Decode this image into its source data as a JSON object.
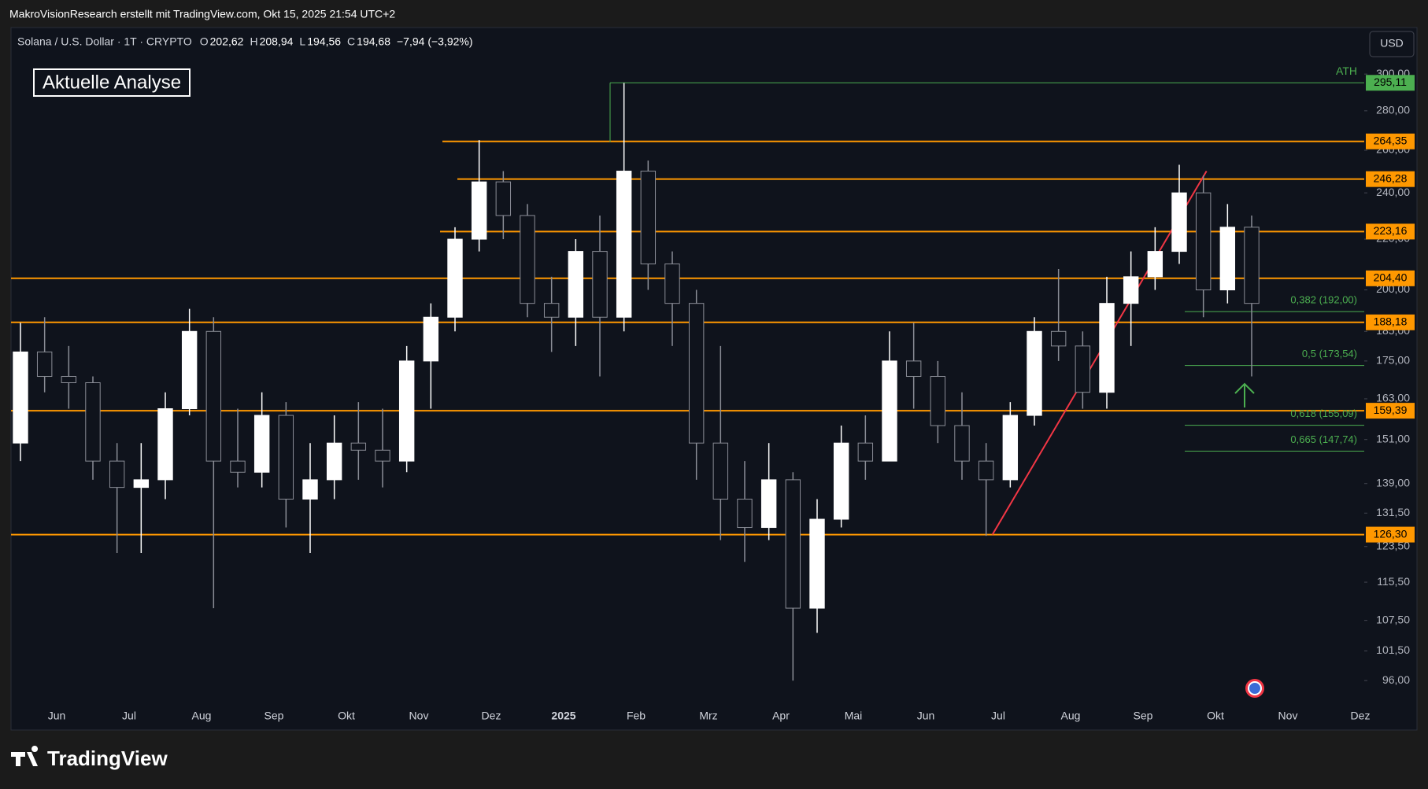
{
  "header": {
    "credit": "MakroVisionResearch erstellt mit TradingView.com, Okt 15, 2025 21:54 UTC+2",
    "brand": "TradingView"
  },
  "chart_data": {
    "type": "candlestick",
    "symbol": "Solana / U.S. Dollar · 1T · CRYPTO",
    "ohlc": [
      {
        "key": "O",
        "text": "202,62"
      },
      {
        "key": "H",
        "text": "208,94"
      },
      {
        "key": "L",
        "text": "194,56"
      },
      {
        "key": "C",
        "text": "194,68"
      }
    ],
    "change": "−7,94 (−3,92%)",
    "currency": "USD",
    "annotation": "Aktuelle Analyse",
    "ath_label": "ATH",
    "log_scale": true,
    "up_color": "#ffffff",
    "down_color": "#8a8d96",
    "categories": [
      "Jun",
      "Jul",
      "Aug",
      "Sep",
      "Okt",
      "Nov",
      "Dez",
      "2025",
      "Feb",
      "Mrz",
      "Apr",
      "Mai",
      "Jun",
      "Jul",
      "Aug",
      "Sep",
      "Okt",
      "Nov",
      "Dez"
    ],
    "candles": {
      "open": [
        150,
        178,
        170,
        168,
        145,
        138,
        140,
        160,
        185,
        145,
        142,
        158,
        135,
        140,
        150,
        148,
        145,
        175,
        190,
        220,
        245,
        230,
        195,
        190,
        215,
        190,
        250,
        210,
        195,
        150,
        135,
        128,
        140,
        110,
        130,
        150,
        145,
        175,
        170,
        155,
        145,
        140,
        158,
        185,
        180,
        165,
        195,
        205,
        215,
        240,
        200,
        225
      ],
      "high": [
        188,
        190,
        180,
        170,
        150,
        150,
        165,
        193,
        190,
        160,
        165,
        162,
        150,
        158,
        162,
        160,
        180,
        195,
        225,
        265,
        250,
        235,
        205,
        220,
        230,
        295,
        255,
        215,
        200,
        180,
        145,
        150,
        142,
        135,
        155,
        158,
        185,
        188,
        175,
        165,
        150,
        162,
        190,
        208,
        185,
        205,
        215,
        225,
        253,
        248,
        235,
        230
      ],
      "low": [
        145,
        165,
        160,
        140,
        122,
        122,
        135,
        158,
        110,
        138,
        138,
        128,
        122,
        135,
        140,
        138,
        142,
        160,
        185,
        215,
        220,
        190,
        178,
        180,
        170,
        185,
        200,
        180,
        140,
        125,
        120,
        125,
        96,
        105,
        128,
        140,
        145,
        160,
        150,
        140,
        126,
        138,
        155,
        175,
        160,
        160,
        180,
        200,
        210,
        190,
        195,
        170
      ],
      "close": [
        178,
        170,
        168,
        145,
        138,
        140,
        160,
        185,
        145,
        142,
        158,
        135,
        140,
        150,
        148,
        145,
        175,
        190,
        220,
        245,
        230,
        195,
        190,
        215,
        190,
        250,
        210,
        195,
        150,
        135,
        128,
        140,
        110,
        130,
        150,
        145,
        175,
        170,
        155,
        145,
        140,
        158,
        185,
        180,
        165,
        195,
        205,
        215,
        240,
        200,
        225,
        195
      ]
    },
    "levels": {
      "color": "#ff9800",
      "items": [
        {
          "value": 264.35,
          "label": "264,35"
        },
        {
          "value": 246.28,
          "label": "246,28"
        },
        {
          "value": 223.16,
          "label": "223,16"
        },
        {
          "value": 204.4,
          "label": "204,40"
        },
        {
          "value": 188.18,
          "label": "188,18"
        },
        {
          "value": 159.39,
          "label": "159,39"
        },
        {
          "value": 126.3,
          "label": "126,30"
        }
      ]
    },
    "ath": {
      "value": 295.11,
      "label": "295,11",
      "color": "#4caf50"
    },
    "fib": {
      "color": "#4caf50",
      "items": [
        {
          "value": 192,
          "label": "0,382 (192,00)"
        },
        {
          "value": 173.54,
          "label": "0,5 (173,54)"
        },
        {
          "value": 155.09,
          "label": "0,618 (155,09)"
        },
        {
          "value": 147.74,
          "label": "0,665 (147,74)"
        }
      ]
    },
    "trendline": {
      "color": "#f23645",
      "values": [
        126.3,
        250
      ]
    },
    "ylim": [
      92,
      325
    ],
    "yticks": [
      {
        "value": 300,
        "label": "300,00"
      },
      {
        "value": 280,
        "label": "280,00"
      },
      {
        "value": 260,
        "label": "260,00"
      },
      {
        "value": 240,
        "label": "240,00"
      },
      {
        "value": 220,
        "label": "220,00"
      },
      {
        "value": 200,
        "label": "200,00"
      },
      {
        "value": 185,
        "label": "185,00"
      },
      {
        "value": 175,
        "label": "175,00"
      },
      {
        "value": 163,
        "label": "163,00"
      },
      {
        "value": 151,
        "label": "151,00"
      },
      {
        "value": 139,
        "label": "139,00"
      },
      {
        "value": 131.5,
        "label": "131,50"
      },
      {
        "value": 123.5,
        "label": "123,50"
      },
      {
        "value": 115.5,
        "label": "115,50"
      },
      {
        "value": 107.5,
        "label": "107,50"
      },
      {
        "value": 101.5,
        "label": "101,50"
      },
      {
        "value": 96,
        "label": "96,00"
      }
    ]
  }
}
